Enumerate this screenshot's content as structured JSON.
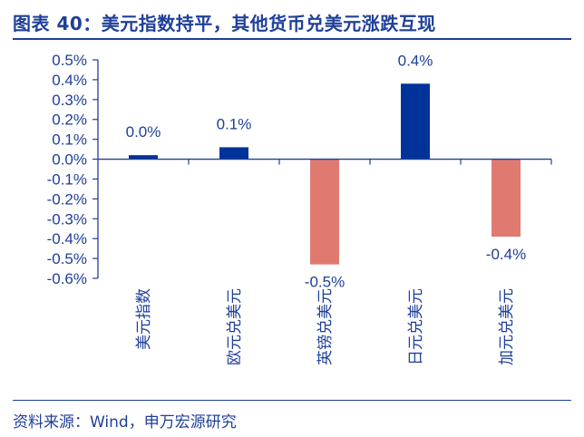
{
  "header": {
    "title": "图表 40：美元指数持平，其他货币兑美元涨跌互现"
  },
  "footer": {
    "source": "资料来源：Wind，申万宏源研究"
  },
  "colors": {
    "accent": "#1f3f99",
    "positive": "#003399",
    "negative": "#e07a70"
  },
  "chart_data": {
    "type": "bar",
    "title": "图表 40：美元指数持平，其他货币兑美元涨跌互现",
    "categories": [
      "美元指数",
      "欧元兑美元",
      "英镑兑美元",
      "日元兑美元",
      "加元兑美元"
    ],
    "values": [
      0.02,
      0.06,
      -0.53,
      0.38,
      -0.39
    ],
    "data_labels": [
      "0.0%",
      "0.1%",
      "-0.5%",
      "0.4%",
      "-0.4%"
    ],
    "ylim": [
      -0.6,
      0.5
    ],
    "yticks": [
      "0.5%",
      "0.4%",
      "0.3%",
      "0.2%",
      "0.1%",
      "0.0%",
      "-0.1%",
      "-0.2%",
      "-0.3%",
      "-0.4%",
      "-0.5%",
      "-0.6%"
    ],
    "ytick_values": [
      0.5,
      0.4,
      0.3,
      0.2,
      0.1,
      0.0,
      -0.1,
      -0.2,
      -0.3,
      -0.4,
      -0.5,
      -0.6
    ],
    "xlabel": "",
    "ylabel": "",
    "grid": false,
    "legend": "none"
  }
}
